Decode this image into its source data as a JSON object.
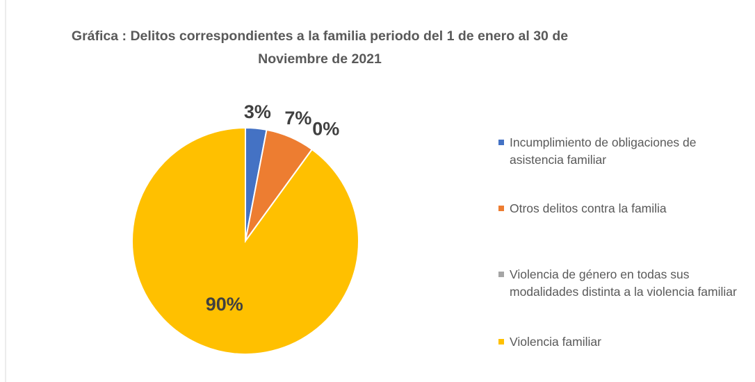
{
  "chart_data": {
    "type": "pie",
    "title": "Gráfica : Delitos correspondientes a la familia periodo del 1 de enero al 30 de Noviembre de 2021",
    "categories": [
      "Incumplimiento de obligaciones de asistencia familiar",
      "Otros delitos contra la familia",
      "Violencia de género en todas sus modalidades distinta a la violencia familiar",
      "Violencia familiar"
    ],
    "values": [
      3,
      7,
      0,
      90
    ],
    "value_labels": [
      "3%",
      "7%",
      "0%",
      "90%"
    ],
    "colors": [
      "#4472c4",
      "#ed7d31",
      "#a5a5a5",
      "#ffc000"
    ],
    "legend": "right"
  }
}
